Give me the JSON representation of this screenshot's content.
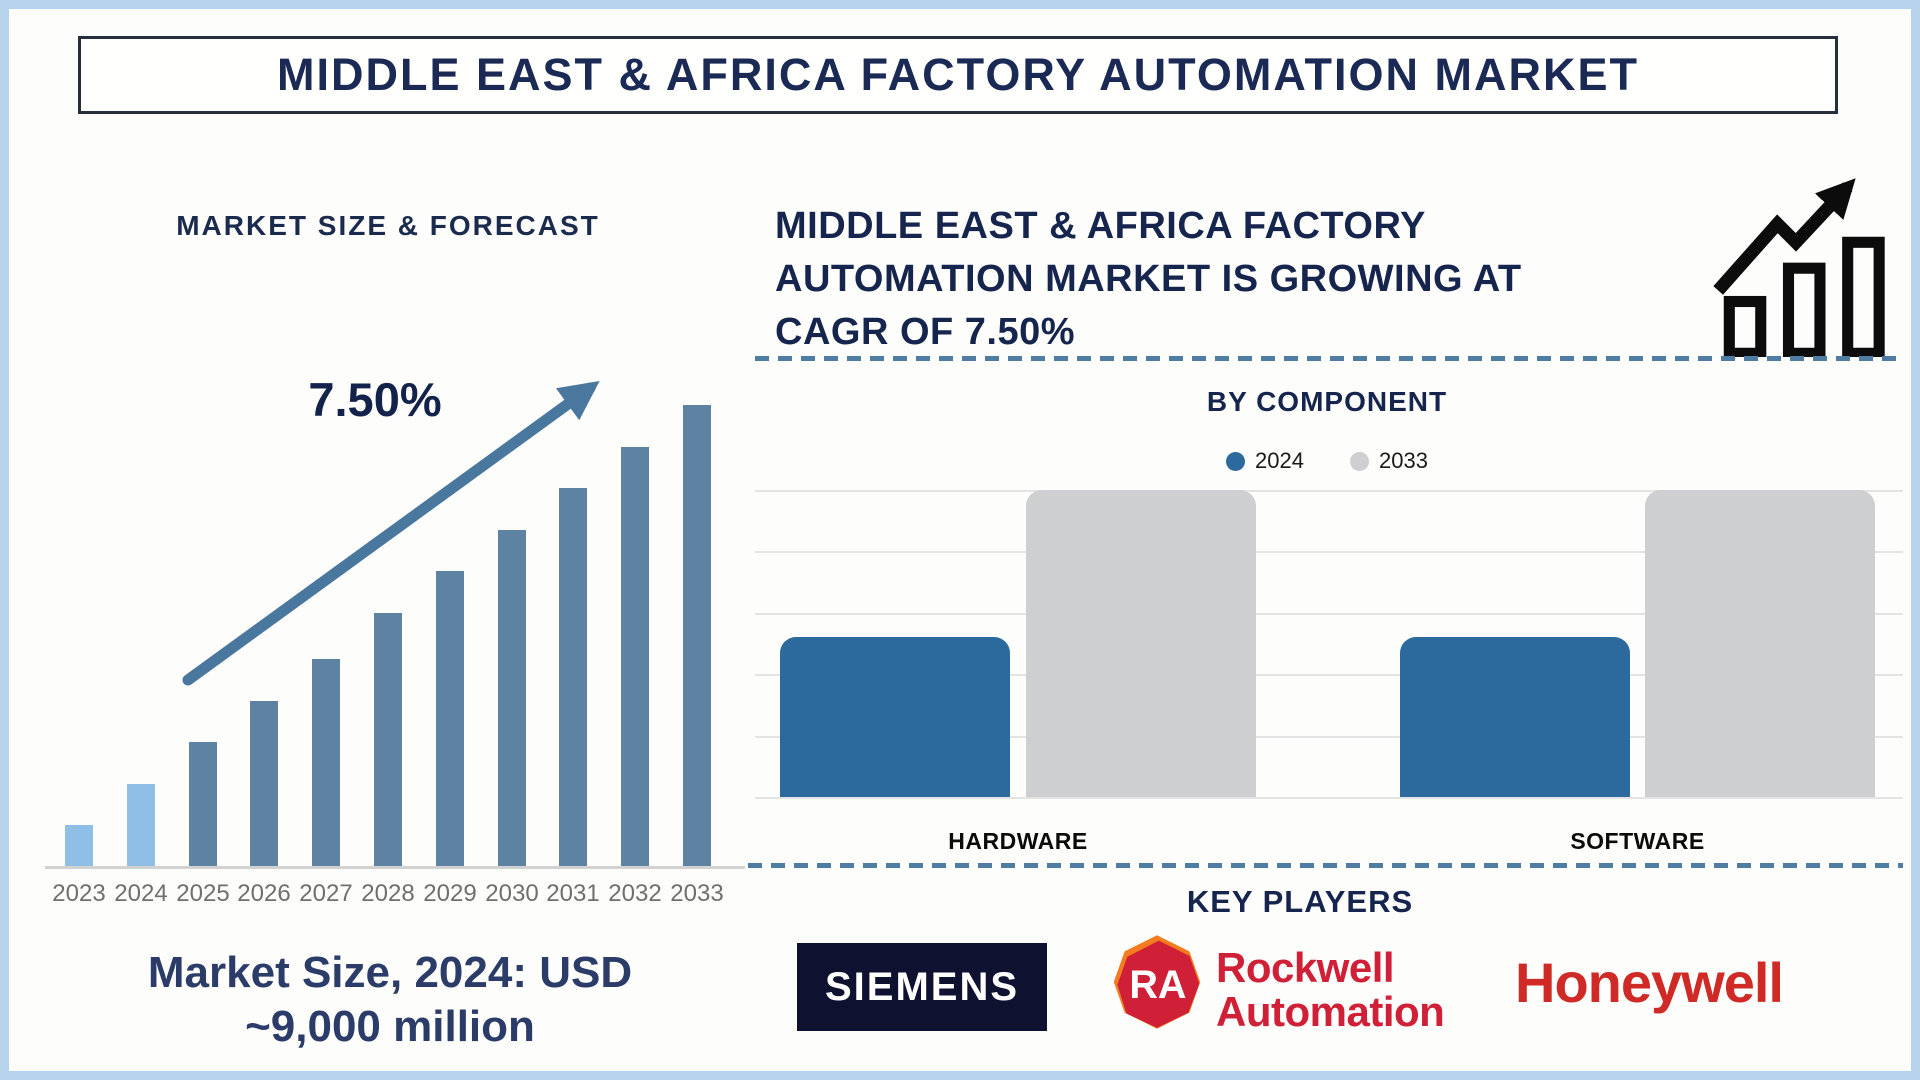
{
  "page": {
    "title": "MIDDLE EAST & AFRICA FACTORY AUTOMATION MARKET"
  },
  "left_panel": {
    "heading": "MARKET SIZE & FORECAST",
    "cagr_label": "7.50%",
    "market_size_lines": [
      "Market Size, 2024: USD",
      "~9,000 million"
    ],
    "colors": {
      "bar_historical": "#8fbee6",
      "bar_forecast": "#5e82a1",
      "arrow": "#49779e",
      "year_label": "#6f6f6f"
    }
  },
  "right_panel": {
    "heading_lines": [
      "MIDDLE EAST & AFRICA FACTORY",
      "AUTOMATION MARKET IS GROWING AT",
      "CAGR OF 7.50%"
    ],
    "by_component": {
      "title": "BY COMPONENT",
      "legend": [
        {
          "label": "2024",
          "color": "#2c6a9e"
        },
        {
          "label": "2033",
          "color": "#cdcfd0"
        }
      ],
      "group_labels": [
        "HARDWARE",
        "SOFTWARE"
      ]
    },
    "key_players": {
      "title": "KEY PLAYERS",
      "players": [
        {
          "name": "SIEMENS",
          "style": "white text on dark navy box"
        },
        {
          "name_line1": "Rockwell",
          "name_line2": "Automation",
          "style": "red text with red RA octagon badge"
        },
        {
          "name": "Honeywell",
          "style": "red text"
        }
      ]
    }
  },
  "chart_data": [
    {
      "type": "bar",
      "title": "MARKET SIZE & FORECAST",
      "categories": [
        "2023",
        "2024",
        "2025",
        "2026",
        "2027",
        "2028",
        "2029",
        "2030",
        "2031",
        "2032",
        "2033"
      ],
      "values": [
        9,
        18,
        27,
        36,
        45,
        55,
        64,
        73,
        82,
        91,
        100
      ],
      "values_unit": "relative bar height % (no value axis shown in source)",
      "xlabel": "",
      "ylabel": "",
      "annotation": "7.50% CAGR with upward trend arrow",
      "highlight": "2023 and 2024 bars light blue, 2025-2033 bars steel blue",
      "grid": false,
      "legend_position": "none"
    },
    {
      "type": "bar",
      "title": "BY COMPONENT",
      "categories": [
        "HARDWARE",
        "SOFTWARE"
      ],
      "series": [
        {
          "name": "2024",
          "values": [
            52,
            52
          ],
          "color": "#2c6a9e"
        },
        {
          "name": "2033",
          "values": [
            100,
            100
          ],
          "color": "#cdcfd0"
        }
      ],
      "values_unit": "relative bar height % (no value axis shown in source)",
      "xlabel": "",
      "ylabel": "",
      "grid": true,
      "legend_position": "top-center"
    }
  ]
}
